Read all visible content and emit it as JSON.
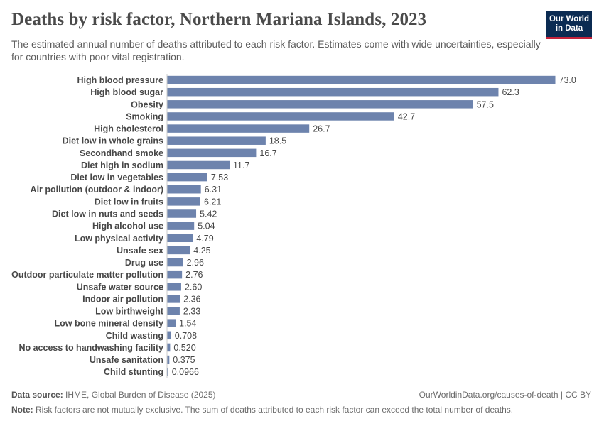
{
  "header": {
    "title": "Deaths by risk factor, Northern Mariana Islands, 2023",
    "subtitle": "The estimated annual number of deaths attributed to each risk factor. Estimates come with wide uncertainties, especially for countries with poor vital registration."
  },
  "logo": {
    "line1": "Our World",
    "line2": "in Data",
    "bg_color": "#0b2b52",
    "accent_color": "#c4233b"
  },
  "footer": {
    "source_label": "Data source:",
    "source_text": "IHME, Global Burden of Disease (2025)",
    "url_text": "OurWorldinData.org/causes-of-death | CC BY",
    "note_label": "Note:",
    "note_text": "Risk factors are not mutually exclusive. The sum of deaths attributed to each risk factor can exceed the total number of deaths."
  },
  "chart_data": {
    "type": "bar",
    "orientation": "horizontal",
    "bar_color": "#6d83ad",
    "categories": [
      "High blood pressure",
      "High blood sugar",
      "Obesity",
      "Smoking",
      "High cholesterol",
      "Diet low in whole grains",
      "Secondhand smoke",
      "Diet high in sodium",
      "Diet low in vegetables",
      "Air pollution (outdoor & indoor)",
      "Diet low in fruits",
      "Diet low in nuts and seeds",
      "High alcohol use",
      "Low physical activity",
      "Unsafe sex",
      "Drug use",
      "Outdoor particulate matter pollution",
      "Unsafe water source",
      "Indoor air pollution",
      "Low birthweight",
      "Low bone mineral density",
      "Child wasting",
      "No access to handwashing facility",
      "Unsafe sanitation",
      "Child stunting"
    ],
    "values": [
      73.0,
      62.3,
      57.5,
      42.7,
      26.7,
      18.5,
      16.7,
      11.7,
      7.53,
      6.31,
      6.21,
      5.42,
      5.04,
      4.79,
      4.25,
      2.96,
      2.76,
      2.6,
      2.36,
      2.33,
      1.54,
      0.708,
      0.52,
      0.375,
      0.0966
    ],
    "value_labels": [
      "73.0",
      "62.3",
      "57.5",
      "42.7",
      "26.7",
      "18.5",
      "16.7",
      "11.7",
      "7.53",
      "6.31",
      "6.21",
      "5.42",
      "5.04",
      "4.79",
      "4.25",
      "2.96",
      "2.76",
      "2.60",
      "2.36",
      "2.33",
      "1.54",
      "0.708",
      "0.520",
      "0.375",
      "0.0966"
    ],
    "title": "Deaths by risk factor, Northern Mariana Islands, 2023",
    "xlabel": "",
    "ylabel": "",
    "xlim": [
      0,
      73.0
    ],
    "grid": false
  }
}
